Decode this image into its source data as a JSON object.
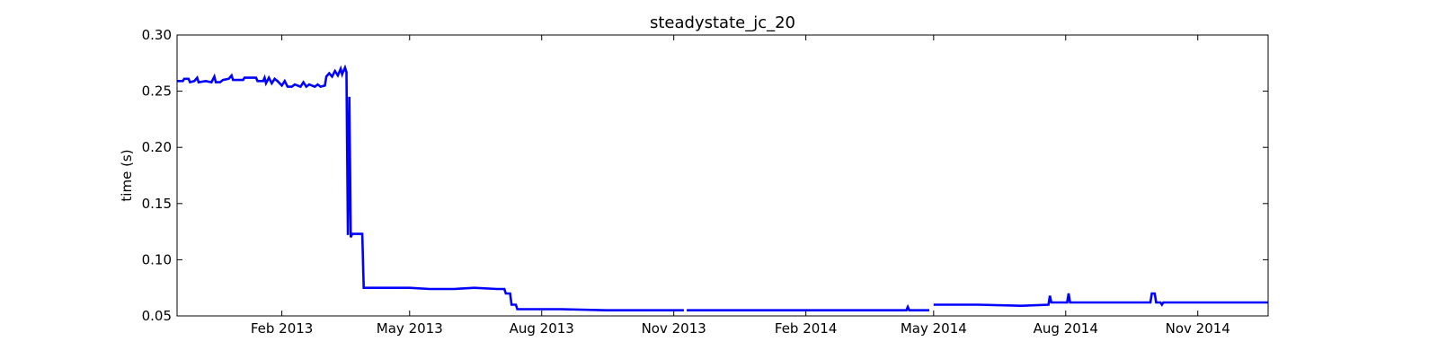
{
  "chart_data": {
    "type": "line",
    "title": "steadystate_jc_20",
    "xlabel": "",
    "ylabel": "time (s)",
    "ylim": [
      0.05,
      0.3
    ],
    "xlim": [
      "2012-11-20",
      "2014-12-20"
    ],
    "grid": false,
    "legend": "none",
    "line_color": "#0000ff",
    "y_ticks": [
      {
        "value": 0.05,
        "label": "0.05"
      },
      {
        "value": 0.1,
        "label": "0.10"
      },
      {
        "value": 0.15,
        "label": "0.15"
      },
      {
        "value": 0.2,
        "label": "0.20"
      },
      {
        "value": 0.25,
        "label": "0.25"
      },
      {
        "value": 0.3,
        "label": "0.30"
      }
    ],
    "x_ticks": [
      {
        "value": "2013-02-01",
        "label": "Feb 2013"
      },
      {
        "value": "2013-05-01",
        "label": "May 2013"
      },
      {
        "value": "2013-08-01",
        "label": "Aug 2013"
      },
      {
        "value": "2013-11-01",
        "label": "Nov 2013"
      },
      {
        "value": "2014-02-01",
        "label": "Feb 2014"
      },
      {
        "value": "2014-05-01",
        "label": "May 2014"
      },
      {
        "value": "2014-08-01",
        "label": "Aug 2014"
      },
      {
        "value": "2014-11-01",
        "label": "Nov 2014"
      }
    ],
    "series": [
      {
        "segments": [
          [
            [
              "2012-11-20",
              0.259
            ],
            [
              "2012-11-24",
              0.259
            ],
            [
              "2012-11-25",
              0.261
            ],
            [
              "2012-11-28",
              0.261
            ],
            [
              "2012-11-29",
              0.258
            ],
            [
              "2012-12-02",
              0.259
            ],
            [
              "2012-12-04",
              0.262
            ],
            [
              "2012-12-05",
              0.258
            ],
            [
              "2012-12-10",
              0.259
            ],
            [
              "2012-12-14",
              0.258
            ],
            [
              "2012-12-16",
              0.263
            ],
            [
              "2012-12-17",
              0.258
            ],
            [
              "2012-12-20",
              0.258
            ],
            [
              "2012-12-22",
              0.26
            ],
            [
              "2012-12-26",
              0.261
            ],
            [
              "2012-12-28",
              0.264
            ],
            [
              "2012-12-29",
              0.26
            ],
            [
              "2013-01-05",
              0.26
            ],
            [
              "2013-01-06",
              0.262
            ],
            [
              "2013-01-14",
              0.262
            ],
            [
              "2013-01-15",
              0.259
            ],
            [
              "2013-01-19",
              0.259
            ],
            [
              "2013-01-20",
              0.262
            ],
            [
              "2013-01-21",
              0.257
            ],
            [
              "2013-01-23",
              0.262
            ],
            [
              "2013-01-25",
              0.257
            ],
            [
              "2013-01-27",
              0.261
            ],
            [
              "2013-01-29",
              0.259
            ],
            [
              "2013-02-01",
              0.255
            ],
            [
              "2013-02-03",
              0.259
            ],
            [
              "2013-02-05",
              0.254
            ],
            [
              "2013-02-08",
              0.254
            ],
            [
              "2013-02-10",
              0.256
            ],
            [
              "2013-02-14",
              0.254
            ],
            [
              "2013-02-16",
              0.258
            ],
            [
              "2013-02-18",
              0.254
            ],
            [
              "2013-02-20",
              0.256
            ],
            [
              "2013-02-24",
              0.254
            ],
            [
              "2013-02-26",
              0.256
            ],
            [
              "2013-02-28",
              0.254
            ],
            [
              "2013-03-03",
              0.255
            ],
            [
              "2013-03-04",
              0.263
            ],
            [
              "2013-03-06",
              0.266
            ],
            [
              "2013-03-08",
              0.263
            ],
            [
              "2013-03-10",
              0.268
            ],
            [
              "2013-03-12",
              0.264
            ],
            [
              "2013-03-14",
              0.27
            ],
            [
              "2013-03-15",
              0.265
            ],
            [
              "2013-03-17",
              0.271
            ],
            [
              "2013-03-18",
              0.267
            ],
            [
              "2013-03-19",
              0.122
            ],
            [
              "2013-03-20",
              0.245
            ],
            [
              "2013-03-21",
              0.12
            ],
            [
              "2013-03-22",
              0.123
            ],
            [
              "2013-03-29",
              0.123
            ],
            [
              "2013-03-30",
              0.075
            ],
            [
              "2013-04-15",
              0.075
            ],
            [
              "2013-05-01",
              0.075
            ],
            [
              "2013-05-15",
              0.074
            ],
            [
              "2013-06-01",
              0.074
            ],
            [
              "2013-06-15",
              0.075
            ],
            [
              "2013-07-01",
              0.074
            ],
            [
              "2013-07-06",
              0.074
            ],
            [
              "2013-07-07",
              0.07
            ],
            [
              "2013-07-10",
              0.07
            ],
            [
              "2013-07-11",
              0.06
            ],
            [
              "2013-07-14",
              0.06
            ],
            [
              "2013-07-15",
              0.056
            ],
            [
              "2013-08-15",
              0.056
            ],
            [
              "2013-09-15",
              0.055
            ],
            [
              "2013-10-15",
              0.055
            ],
            [
              "2013-11-08",
              0.055
            ]
          ],
          [
            [
              "2013-11-10",
              0.055
            ],
            [
              "2013-12-15",
              0.055
            ],
            [
              "2014-01-15",
              0.055
            ],
            [
              "2014-02-15",
              0.055
            ],
            [
              "2014-03-15",
              0.055
            ],
            [
              "2014-04-12",
              0.055
            ],
            [
              "2014-04-13",
              0.058
            ],
            [
              "2014-04-14",
              0.055
            ],
            [
              "2014-04-28",
              0.055
            ]
          ],
          [
            [
              "2014-05-01",
              0.06
            ],
            [
              "2014-06-01",
              0.06
            ],
            [
              "2014-07-01",
              0.059
            ],
            [
              "2014-07-20",
              0.06
            ],
            [
              "2014-07-21",
              0.068
            ],
            [
              "2014-07-22",
              0.062
            ],
            [
              "2014-08-02",
              0.062
            ],
            [
              "2014-08-03",
              0.07
            ],
            [
              "2014-08-04",
              0.062
            ],
            [
              "2014-09-01",
              0.062
            ],
            [
              "2014-09-29",
              0.062
            ],
            [
              "2014-09-30",
              0.07
            ],
            [
              "2014-10-02",
              0.07
            ],
            [
              "2014-10-03",
              0.062
            ],
            [
              "2014-10-06",
              0.062
            ],
            [
              "2014-10-07",
              0.06
            ],
            [
              "2014-10-08",
              0.062
            ],
            [
              "2014-11-01",
              0.062
            ],
            [
              "2014-12-01",
              0.062
            ],
            [
              "2014-12-20",
              0.062
            ]
          ]
        ]
      }
    ]
  }
}
